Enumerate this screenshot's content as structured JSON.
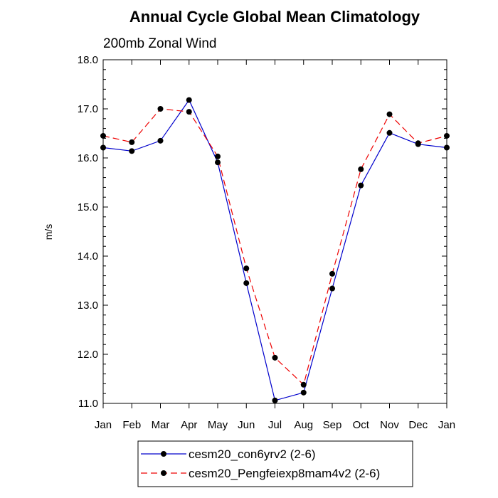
{
  "chart_data": {
    "type": "line",
    "title": "Annual Cycle Global Mean Climatology",
    "subtitle": "200mb Zonal Wind",
    "xlabel": "",
    "ylabel": "m/s",
    "categories": [
      "Jan",
      "Feb",
      "Mar",
      "Apr",
      "May",
      "Jun",
      "Jul",
      "Aug",
      "Sep",
      "Oct",
      "Nov",
      "Dec",
      "Jan"
    ],
    "ylim": [
      11.0,
      18.0
    ],
    "yticks": [
      "11.0",
      "12.0",
      "13.0",
      "14.0",
      "15.0",
      "16.0",
      "17.0",
      "18.0"
    ],
    "grid": false,
    "legend_position": "bottom",
    "series": [
      {
        "name": "cesm20_con6yrv2 (2-6)",
        "color": "#0000cc",
        "line_style": "solid",
        "values": [
          16.21,
          16.14,
          16.35,
          17.18,
          15.91,
          13.45,
          11.06,
          11.22,
          13.34,
          15.44,
          16.51,
          16.28,
          16.21
        ]
      },
      {
        "name": "cesm20_Pengfeiexp8mam4v2 (2-6)",
        "color": "#ee0000",
        "line_style": "dashed",
        "values": [
          16.45,
          16.32,
          17.0,
          16.94,
          16.03,
          13.75,
          11.93,
          11.38,
          13.64,
          15.77,
          16.89,
          16.3,
          16.45
        ]
      }
    ]
  }
}
